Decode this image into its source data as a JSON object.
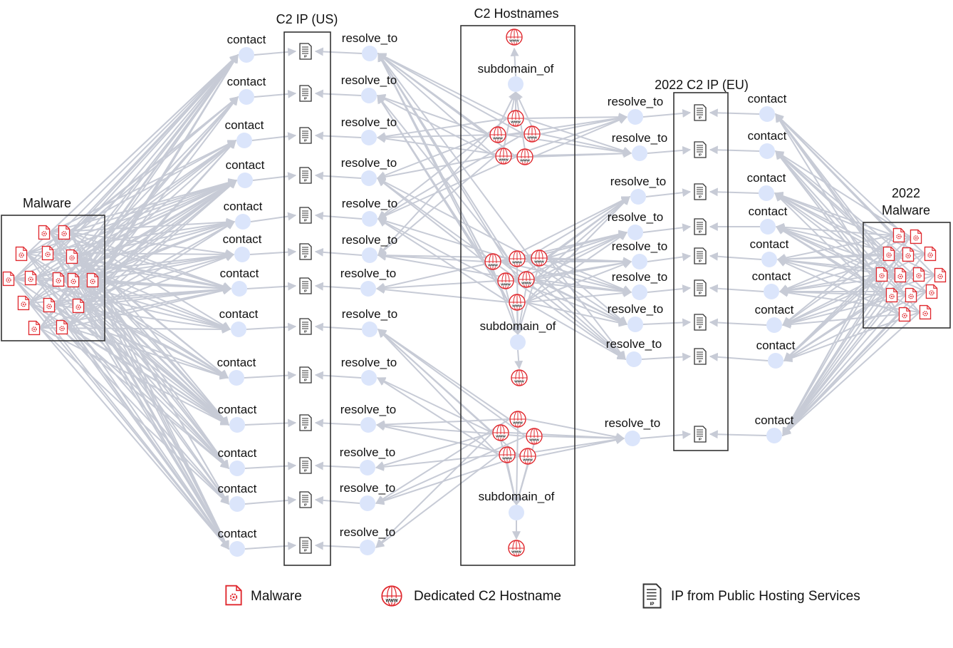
{
  "groups": {
    "malware": "Malware",
    "c2_ip_us": "C2 IP (US)",
    "c2_hostnames": "C2 Hostnames",
    "c2_ip_eu": "2022 C2 IP (EU)",
    "malware_2022_line1": "2022",
    "malware_2022_line2": "Malware"
  },
  "relations": {
    "contact": "contact",
    "resolve_to": "resolve_to",
    "subdomain_of": "subdomain_of"
  },
  "icons": {
    "malware": "malware-file-icon",
    "hostname": "www-globe-icon",
    "ip": "ip-document-icon"
  },
  "icon_labels": {
    "www": "WWW",
    "ip": "IP"
  },
  "legend": {
    "malware": "Malware",
    "hostname": "Dedicated C2 Hostname",
    "ip": "IP from Public Hosting Services"
  },
  "colors": {
    "malware_red": "#e0282e",
    "node_fill": "#dbe5fb",
    "edge": "#c7cbd6",
    "box_border": "#333333"
  }
}
